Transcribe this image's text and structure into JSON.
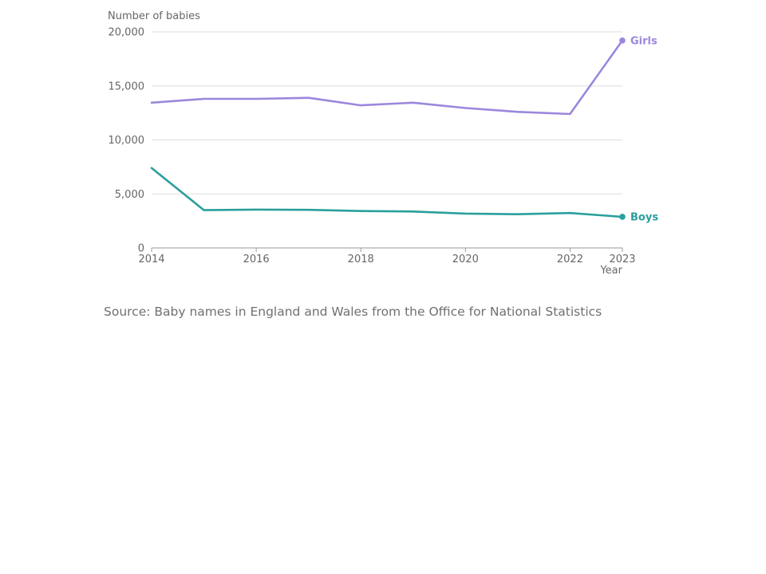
{
  "chart_data": {
    "type": "line",
    "ylabel": "Number of babies",
    "xlabel": "Year",
    "x": [
      2014,
      2015,
      2016,
      2017,
      2018,
      2019,
      2020,
      2021,
      2022,
      2023
    ],
    "x_ticks": [
      "2014",
      "2016",
      "2018",
      "2020",
      "2022",
      "2023"
    ],
    "y_ticks": [
      "0",
      "5,000",
      "10,000",
      "15,000",
      "20,000"
    ],
    "y_tick_values": [
      0,
      5000,
      10000,
      15000,
      20000
    ],
    "ylim": [
      0,
      20000
    ],
    "xlim": [
      2014,
      2023
    ],
    "grid": true,
    "series": [
      {
        "name": "Girls",
        "color": "#9b87dd",
        "values": [
          13450,
          13800,
          13800,
          13900,
          13200,
          13450,
          12950,
          12600,
          12400,
          19200
        ]
      },
      {
        "name": "Boys",
        "color": "#2a9f9d",
        "values": [
          7400,
          3500,
          3550,
          3530,
          3420,
          3370,
          3180,
          3120,
          3230,
          2880
        ]
      }
    ]
  },
  "source": "Source: Baby names in England and Wales from the Office for National Statistics"
}
